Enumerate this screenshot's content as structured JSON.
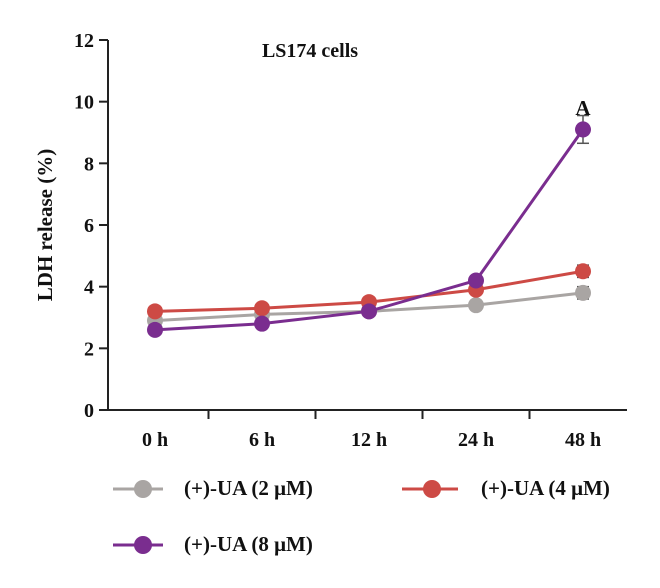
{
  "chart_data": {
    "type": "line",
    "title": "LS174 cells",
    "ylabel": "LDH release (%)",
    "xlabel": "",
    "categories": [
      "0 h",
      "6 h",
      "12 h",
      "24 h",
      "48 h"
    ],
    "ylim": [
      0,
      12
    ],
    "yticks": [
      "0",
      "2",
      "4",
      "6",
      "8",
      "10",
      "12"
    ],
    "grid": false,
    "legend_position": "bottom",
    "series": [
      {
        "name": "(+)-UA (2 μM)",
        "color": "#a9a5a3",
        "values": [
          2.9,
          3.1,
          3.2,
          3.4,
          3.8
        ],
        "errors": [
          0.1,
          0.1,
          0.1,
          0.15,
          0.2
        ]
      },
      {
        "name": "(+)-UA (4 μM)",
        "color": "#cd4a45",
        "values": [
          3.2,
          3.3,
          3.5,
          3.9,
          4.5
        ],
        "errors": [
          0.1,
          0.1,
          0.1,
          0.15,
          0.2
        ]
      },
      {
        "name": "(+)-UA (8 μM)",
        "color": "#7a2d8f",
        "values": [
          2.6,
          2.8,
          3.2,
          4.2,
          9.1
        ],
        "errors": [
          0.1,
          0.1,
          0.1,
          0.15,
          0.45
        ]
      }
    ],
    "annotations": [
      {
        "text": "A",
        "category": "48 h",
        "value": 9.8
      }
    ]
  }
}
